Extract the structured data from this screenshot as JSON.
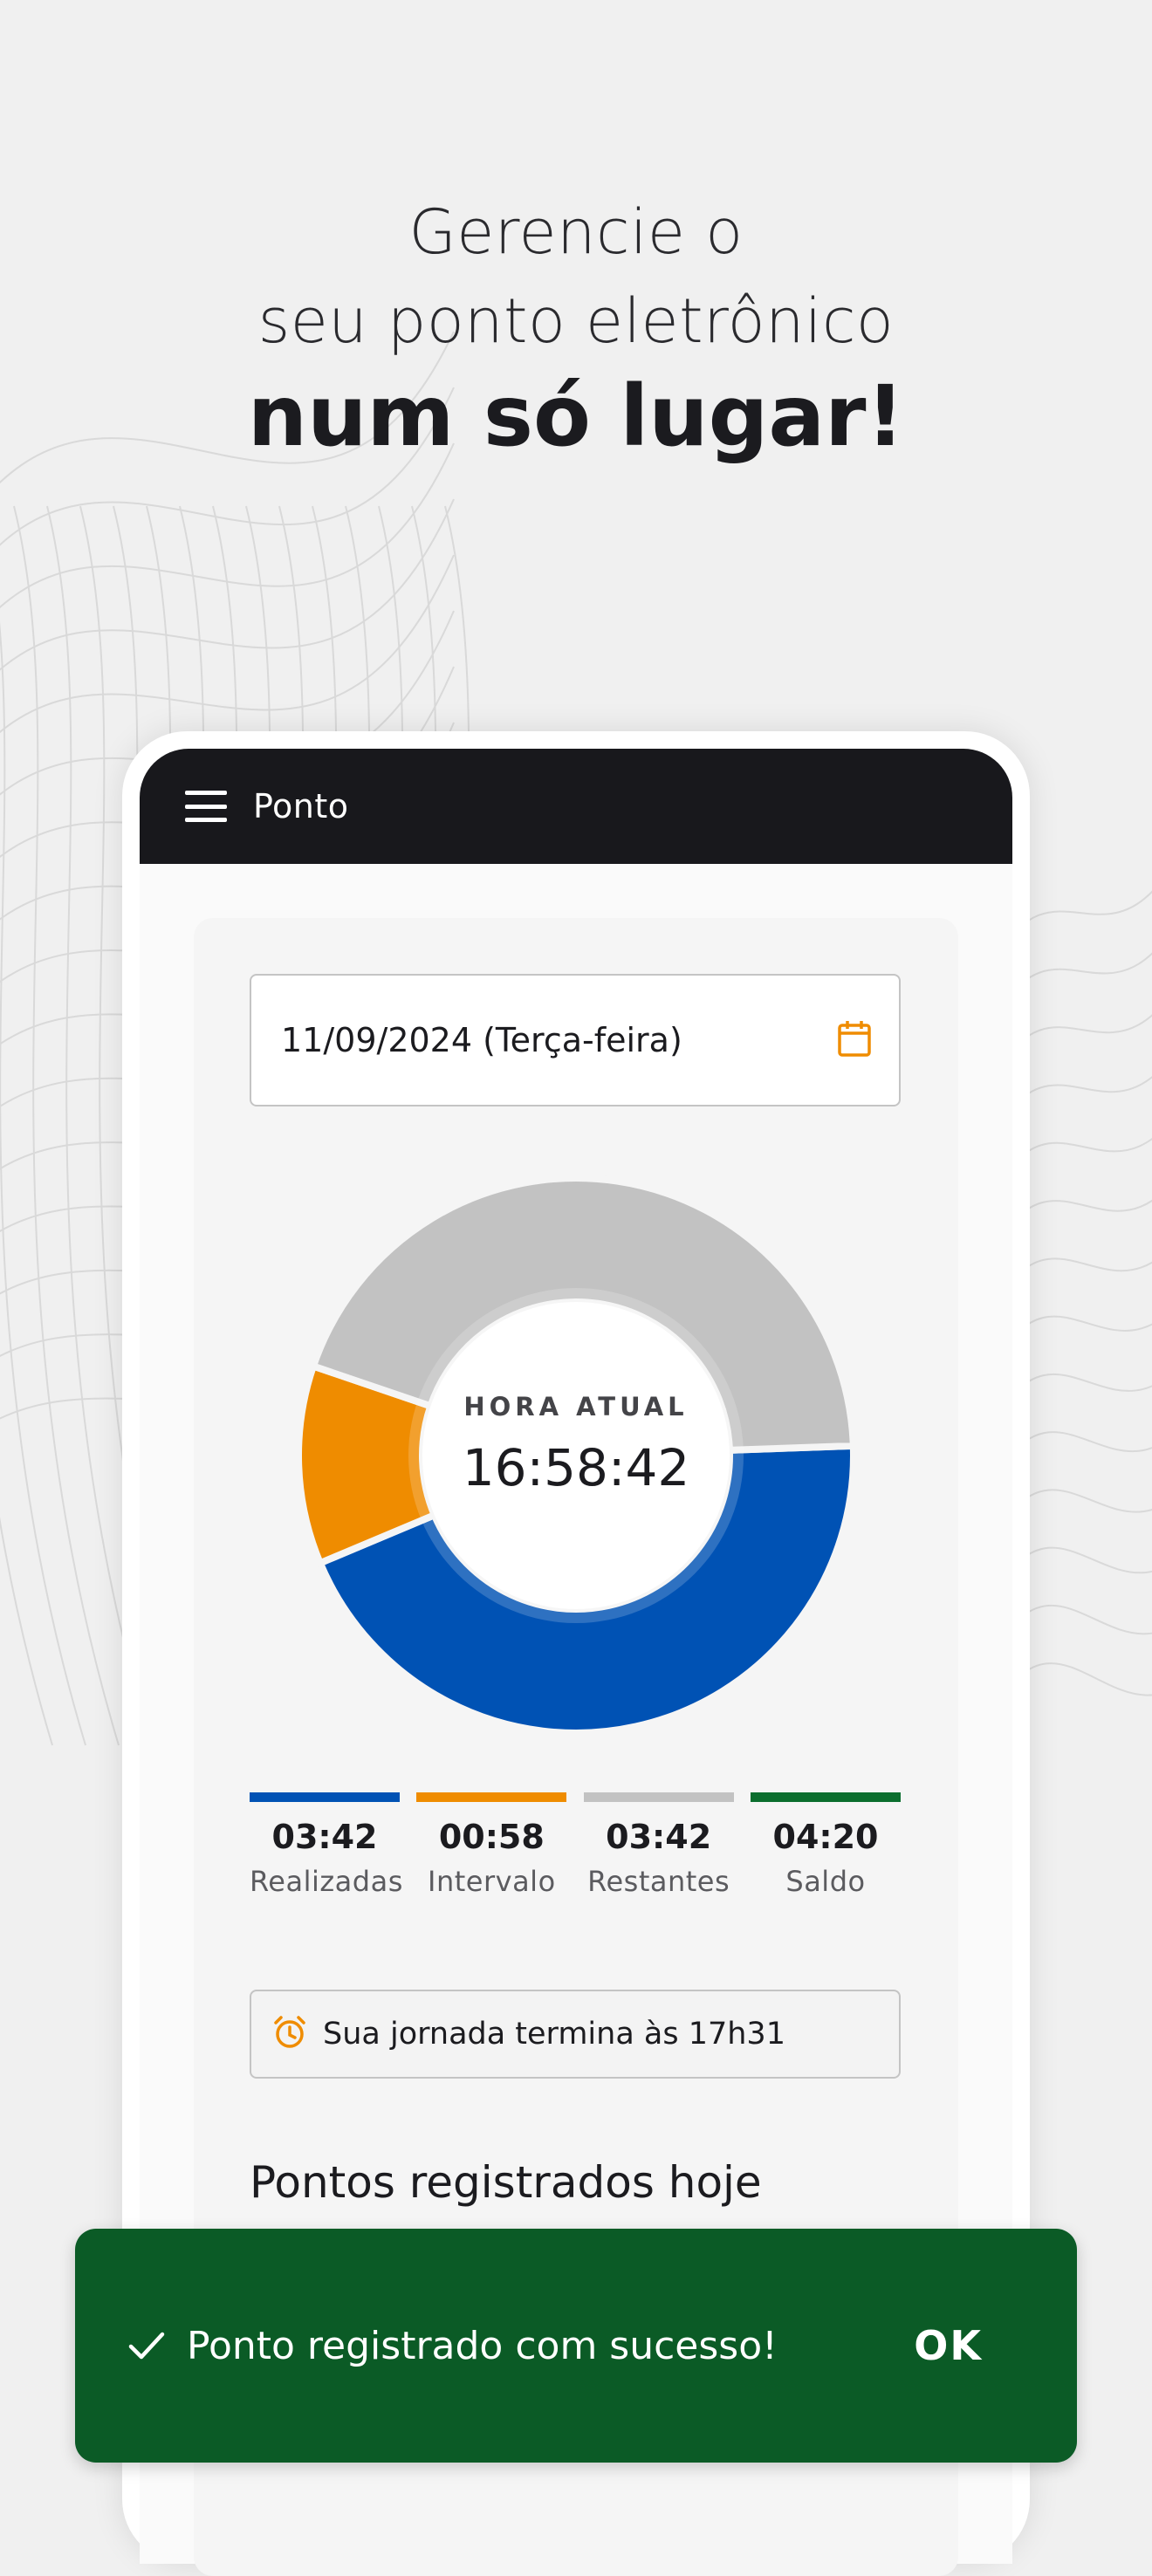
{
  "headline": {
    "line1": "Gerencie o",
    "line2": "seu ponto eletrônico",
    "line3": "num só lugar!"
  },
  "appbar": {
    "title": "Ponto",
    "menu_icon": "hamburger-menu-icon"
  },
  "date_field": {
    "value": "11/09/2024 (Terça-feira)",
    "icon": "calendar-icon"
  },
  "chart_data": {
    "type": "pie",
    "center_label": "HORA ATUAL",
    "center_value": "16:58:42",
    "categories": [
      "Realizadas",
      "Intervalo",
      "Restantes"
    ],
    "values": [
      222,
      58,
      222
    ],
    "colors": [
      "#0052b4",
      "#ef8c00",
      "#c2c2c2"
    ]
  },
  "legend": [
    {
      "value": "03:42",
      "label": "Realizadas",
      "color": "#0052b4"
    },
    {
      "value": "00:58",
      "label": "Intervalo",
      "color": "#ef8c00"
    },
    {
      "value": "03:42",
      "label": "Restantes",
      "color": "#c2c2c2"
    },
    {
      "value": "04:20",
      "label": "Saldo",
      "color": "#0b6e2e"
    }
  ],
  "alert": {
    "icon": "alarm-clock-icon",
    "text": "Sua jornada termina às 17h31",
    "icon_color": "#ef8c00"
  },
  "section": {
    "title": "Pontos registrados hoje"
  },
  "snackbar": {
    "icon": "checkmark-icon",
    "message": "Ponto registrado com sucesso!",
    "action": "OK",
    "background": "#0b5b26"
  }
}
